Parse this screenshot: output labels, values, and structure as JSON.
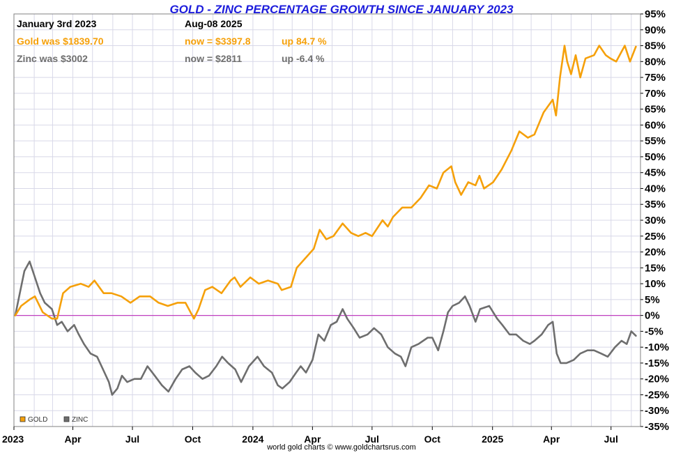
{
  "header": {
    "title": "GOLD - ZINC PERCENTAGE GROWTH SINCE JANUARY 2023",
    "start_date": "January 3rd 2023",
    "end_date": "Aug-08  2025",
    "gold_was": "Gold was $1839.70",
    "gold_now": "now = $3397.8",
    "gold_up": "up 84.7 %",
    "zinc_was": "Zinc was $3002",
    "zinc_now": "now = $2811",
    "zinc_up": "up -6.4 %"
  },
  "credit": "world gold charts © www.goldchartsrus.com",
  "colors": {
    "gold": "#f5a00a",
    "zinc": "#6e6e6e",
    "zero_line": "#c040c0",
    "grid": "#d8d8e8",
    "title": "#1c1cdc"
  },
  "chart_data": {
    "type": "line",
    "title": "GOLD - ZINC PERCENTAGE GROWTH SINCE JANUARY 2023",
    "xlabel": "",
    "ylabel": "",
    "ylim": [
      -35,
      95
    ],
    "xlim": [
      "2023-01-01",
      "2025-08-15"
    ],
    "grid": true,
    "legend": "bottom-left",
    "y_ticks": [
      "95%",
      "90%",
      "85%",
      "80%",
      "75%",
      "70%",
      "65%",
      "60%",
      "55%",
      "50%",
      "45%",
      "40%",
      "35%",
      "30%",
      "25%",
      "20%",
      "15%",
      "10%",
      "5%",
      "0%",
      "-5%",
      "-10%",
      "-15%",
      "-20%",
      "-25%",
      "-30%",
      "-35%"
    ],
    "x_ticks": [
      {
        "date": "2023-01-01",
        "label": "2023"
      },
      {
        "date": "2023-04-01",
        "label": "Apr"
      },
      {
        "date": "2023-07-01",
        "label": "Jul"
      },
      {
        "date": "2023-10-01",
        "label": "Oct"
      },
      {
        "date": "2024-01-01",
        "label": "2024"
      },
      {
        "date": "2024-04-01",
        "label": "Apr"
      },
      {
        "date": "2024-07-01",
        "label": "Jul"
      },
      {
        "date": "2024-10-01",
        "label": "Oct"
      },
      {
        "date": "2025-01-01",
        "label": "2025"
      },
      {
        "date": "2025-04-01",
        "label": "Apr"
      },
      {
        "date": "2025-07-01",
        "label": "Jul"
      }
    ],
    "series": [
      {
        "name": "GOLD",
        "points": [
          [
            "2023-01-03",
            0
          ],
          [
            "2023-01-12",
            3
          ],
          [
            "2023-01-25",
            5
          ],
          [
            "2023-02-02",
            6
          ],
          [
            "2023-02-14",
            1
          ],
          [
            "2023-02-28",
            -1
          ],
          [
            "2023-03-08",
            -1
          ],
          [
            "2023-03-17",
            7
          ],
          [
            "2023-03-28",
            9
          ],
          [
            "2023-04-13",
            10
          ],
          [
            "2023-04-25",
            9
          ],
          [
            "2023-05-04",
            11
          ],
          [
            "2023-05-18",
            7
          ],
          [
            "2023-05-30",
            7
          ],
          [
            "2023-06-14",
            6
          ],
          [
            "2023-06-28",
            4
          ],
          [
            "2023-07-12",
            6
          ],
          [
            "2023-07-28",
            6
          ],
          [
            "2023-08-10",
            4
          ],
          [
            "2023-08-24",
            3
          ],
          [
            "2023-09-08",
            4
          ],
          [
            "2023-09-20",
            4
          ],
          [
            "2023-10-03",
            -1
          ],
          [
            "2023-10-10",
            2
          ],
          [
            "2023-10-20",
            8
          ],
          [
            "2023-10-31",
            9
          ],
          [
            "2023-11-14",
            7
          ],
          [
            "2023-11-28",
            11
          ],
          [
            "2023-12-04",
            12
          ],
          [
            "2023-12-13",
            9
          ],
          [
            "2023-12-28",
            12
          ],
          [
            "2024-01-10",
            10
          ],
          [
            "2024-01-24",
            11
          ],
          [
            "2024-02-08",
            10
          ],
          [
            "2024-02-14",
            8
          ],
          [
            "2024-02-28",
            9
          ],
          [
            "2024-03-08",
            15
          ],
          [
            "2024-03-21",
            18
          ],
          [
            "2024-04-03",
            21
          ],
          [
            "2024-04-12",
            27
          ],
          [
            "2024-04-22",
            24
          ],
          [
            "2024-05-03",
            25
          ],
          [
            "2024-05-17",
            29
          ],
          [
            "2024-05-30",
            26
          ],
          [
            "2024-06-10",
            25
          ],
          [
            "2024-06-21",
            26
          ],
          [
            "2024-07-01",
            25
          ],
          [
            "2024-07-17",
            30
          ],
          [
            "2024-07-25",
            28
          ],
          [
            "2024-08-02",
            31
          ],
          [
            "2024-08-16",
            34
          ],
          [
            "2024-08-30",
            34
          ],
          [
            "2024-09-13",
            37
          ],
          [
            "2024-09-26",
            41
          ],
          [
            "2024-10-08",
            40
          ],
          [
            "2024-10-18",
            45
          ],
          [
            "2024-10-30",
            47
          ],
          [
            "2024-11-05",
            42
          ],
          [
            "2024-11-14",
            38
          ],
          [
            "2024-11-25",
            42
          ],
          [
            "2024-12-06",
            41
          ],
          [
            "2024-12-12",
            44
          ],
          [
            "2024-12-19",
            40
          ],
          [
            "2025-01-02",
            42
          ],
          [
            "2025-01-15",
            46
          ],
          [
            "2025-01-30",
            52
          ],
          [
            "2025-02-11",
            58
          ],
          [
            "2025-02-24",
            56
          ],
          [
            "2025-03-06",
            57
          ],
          [
            "2025-03-20",
            64
          ],
          [
            "2025-04-03",
            68
          ],
          [
            "2025-04-08",
            63
          ],
          [
            "2025-04-14",
            75
          ],
          [
            "2025-04-21",
            85
          ],
          [
            "2025-04-25",
            80
          ],
          [
            "2025-05-01",
            76
          ],
          [
            "2025-05-08",
            82
          ],
          [
            "2025-05-15",
            75
          ],
          [
            "2025-05-23",
            81
          ],
          [
            "2025-06-05",
            82
          ],
          [
            "2025-06-13",
            85
          ],
          [
            "2025-06-23",
            82
          ],
          [
            "2025-06-30",
            81
          ],
          [
            "2025-07-09",
            80
          ],
          [
            "2025-07-22",
            85
          ],
          [
            "2025-07-30",
            80
          ],
          [
            "2025-08-08",
            84.7
          ]
        ]
      },
      {
        "name": "ZINC",
        "points": [
          [
            "2023-01-03",
            0
          ],
          [
            "2023-01-09",
            6
          ],
          [
            "2023-01-17",
            14
          ],
          [
            "2023-01-25",
            17
          ],
          [
            "2023-02-02",
            12
          ],
          [
            "2023-02-10",
            7
          ],
          [
            "2023-02-17",
            4
          ],
          [
            "2023-02-28",
            2
          ],
          [
            "2023-03-08",
            -3
          ],
          [
            "2023-03-15",
            -2
          ],
          [
            "2023-03-24",
            -5
          ],
          [
            "2023-04-03",
            -3
          ],
          [
            "2023-04-10",
            -6
          ],
          [
            "2023-04-18",
            -9
          ],
          [
            "2023-04-28",
            -12
          ],
          [
            "2023-05-08",
            -13
          ],
          [
            "2023-05-17",
            -17
          ],
          [
            "2023-05-26",
            -21
          ],
          [
            "2023-05-31",
            -25
          ],
          [
            "2023-06-08",
            -23
          ],
          [
            "2023-06-15",
            -19
          ],
          [
            "2023-06-23",
            -21
          ],
          [
            "2023-07-04",
            -20
          ],
          [
            "2023-07-14",
            -20
          ],
          [
            "2023-07-24",
            -16
          ],
          [
            "2023-08-04",
            -19
          ],
          [
            "2023-08-15",
            -22
          ],
          [
            "2023-08-25",
            -24
          ],
          [
            "2023-09-05",
            -20
          ],
          [
            "2023-09-15",
            -17
          ],
          [
            "2023-09-26",
            -16
          ],
          [
            "2023-10-05",
            -18
          ],
          [
            "2023-10-16",
            -20
          ],
          [
            "2023-10-26",
            -19
          ],
          [
            "2023-11-06",
            -16
          ],
          [
            "2023-11-15",
            -13
          ],
          [
            "2023-11-24",
            -15
          ],
          [
            "2023-12-05",
            -17
          ],
          [
            "2023-12-14",
            -21
          ],
          [
            "2023-12-26",
            -16
          ],
          [
            "2024-01-08",
            -13
          ],
          [
            "2024-01-18",
            -16
          ],
          [
            "2024-01-30",
            -18
          ],
          [
            "2024-02-08",
            -22
          ],
          [
            "2024-02-15",
            -23
          ],
          [
            "2024-02-26",
            -21
          ],
          [
            "2024-03-07",
            -18
          ],
          [
            "2024-03-14",
            -16
          ],
          [
            "2024-03-22",
            -18
          ],
          [
            "2024-04-01",
            -14
          ],
          [
            "2024-04-10",
            -6
          ],
          [
            "2024-04-19",
            -8
          ],
          [
            "2024-04-29",
            -3
          ],
          [
            "2024-05-08",
            -2
          ],
          [
            "2024-05-17",
            2
          ],
          [
            "2024-05-24",
            -1
          ],
          [
            "2024-06-03",
            -4
          ],
          [
            "2024-06-12",
            -7
          ],
          [
            "2024-06-24",
            -6
          ],
          [
            "2024-07-04",
            -4
          ],
          [
            "2024-07-15",
            -6
          ],
          [
            "2024-07-25",
            -10
          ],
          [
            "2024-08-05",
            -12
          ],
          [
            "2024-08-14",
            -13
          ],
          [
            "2024-08-21",
            -16
          ],
          [
            "2024-08-30",
            -10
          ],
          [
            "2024-09-10",
            -9
          ],
          [
            "2024-09-24",
            -7
          ],
          [
            "2024-10-01",
            -7
          ],
          [
            "2024-10-10",
            -11
          ],
          [
            "2024-10-18",
            -5
          ],
          [
            "2024-10-25",
            1
          ],
          [
            "2024-11-01",
            3
          ],
          [
            "2024-11-11",
            4
          ],
          [
            "2024-11-20",
            6
          ],
          [
            "2024-11-27",
            3
          ],
          [
            "2024-12-06",
            -2
          ],
          [
            "2024-12-13",
            2
          ],
          [
            "2024-12-27",
            3
          ],
          [
            "2025-01-08",
            -1
          ],
          [
            "2025-01-16",
            -3
          ],
          [
            "2025-01-27",
            -6
          ],
          [
            "2025-02-06",
            -6
          ],
          [
            "2025-02-17",
            -8
          ],
          [
            "2025-02-27",
            -9
          ],
          [
            "2025-03-06",
            -8
          ],
          [
            "2025-03-17",
            -6
          ],
          [
            "2025-03-27",
            -3
          ],
          [
            "2025-04-03",
            -2
          ],
          [
            "2025-04-09",
            -12
          ],
          [
            "2025-04-15",
            -15
          ],
          [
            "2025-04-24",
            -15
          ],
          [
            "2025-05-05",
            -14
          ],
          [
            "2025-05-15",
            -12
          ],
          [
            "2025-05-26",
            -11
          ],
          [
            "2025-06-05",
            -11
          ],
          [
            "2025-06-16",
            -12
          ],
          [
            "2025-06-26",
            -13
          ],
          [
            "2025-07-07",
            -10
          ],
          [
            "2025-07-17",
            -8
          ],
          [
            "2025-07-25",
            -9
          ],
          [
            "2025-08-01",
            -5
          ],
          [
            "2025-08-08",
            -6.4
          ]
        ]
      }
    ]
  }
}
